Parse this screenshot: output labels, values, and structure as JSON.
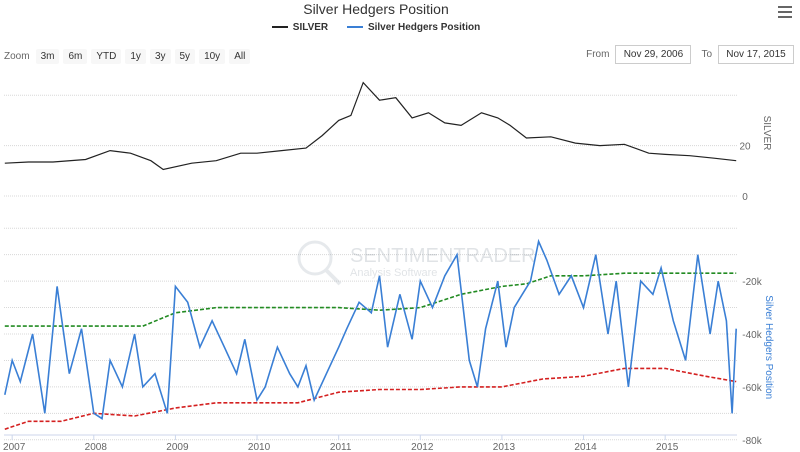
{
  "title": "Silver Hedgers Position",
  "legend": [
    {
      "name": "SILVER",
      "color": "#222222"
    },
    {
      "name": "Silver Hedgers Position",
      "color": "#3a7fd5"
    }
  ],
  "zoom": {
    "label": "Zoom",
    "buttons": [
      "3m",
      "6m",
      "YTD",
      "1y",
      "3y",
      "5y",
      "10y",
      "All"
    ]
  },
  "range": {
    "from_label": "From",
    "from": "Nov 29, 2006",
    "to_label": "To",
    "to": "Nov 17, 2015"
  },
  "watermark": {
    "name": "SENTIMENTRADER",
    "sub": "Analysis Software"
  },
  "colors": {
    "silver": "#222222",
    "hedgers": "#3a7fd5",
    "upper_band": "#228b22",
    "lower_band": "#d42020"
  },
  "chart_data": [
    {
      "type": "line",
      "name": "SILVER",
      "ylabel": "SILVER",
      "ylim": [
        0,
        50
      ],
      "yticks": [
        "20",
        "0"
      ],
      "x_range": [
        2006.9,
        2015.88
      ],
      "x_ticks": [
        "2007",
        "2008",
        "2009",
        "2010",
        "2011",
        "2012",
        "2013",
        "2014",
        "2015"
      ],
      "x": [
        2006.91,
        2007.2,
        2007.5,
        2007.9,
        2008.2,
        2008.45,
        2008.7,
        2008.85,
        2009.2,
        2009.5,
        2009.8,
        2010.0,
        2010.3,
        2010.6,
        2010.8,
        2011.0,
        2011.15,
        2011.3,
        2011.5,
        2011.7,
        2011.9,
        2012.1,
        2012.3,
        2012.5,
        2012.75,
        2012.95,
        2013.1,
        2013.3,
        2013.6,
        2013.9,
        2014.2,
        2014.5,
        2014.8,
        2015.0,
        2015.3,
        2015.6,
        2015.87
      ],
      "y": [
        13,
        13.5,
        13.5,
        14.5,
        18,
        17,
        14,
        10.5,
        13,
        14,
        17,
        17,
        18,
        19,
        24,
        30,
        32,
        45,
        38,
        39,
        31,
        33,
        29,
        28,
        33,
        31,
        28,
        23,
        23.5,
        21,
        20,
        20.5,
        17,
        16.5,
        16,
        15,
        14
      ]
    },
    {
      "type": "line",
      "name": "Silver Hedgers Position",
      "ylabel": "Silver Hedgers Position",
      "ylim": [
        -85000,
        5000
      ],
      "yticks": [
        "-20k",
        "-40k",
        "-60k",
        "-80k"
      ],
      "x_range": [
        2006.9,
        2015.88
      ],
      "series": [
        {
          "name": "Silver Hedgers Position",
          "x": [
            2006.91,
            2007.0,
            2007.1,
            2007.25,
            2007.4,
            2007.55,
            2007.7,
            2007.85,
            2008.0,
            2008.1,
            2008.2,
            2008.35,
            2008.5,
            2008.6,
            2008.75,
            2008.9,
            2009.0,
            2009.15,
            2009.3,
            2009.45,
            2009.6,
            2009.75,
            2009.85,
            2010.0,
            2010.1,
            2010.25,
            2010.4,
            2010.5,
            2010.6,
            2010.7,
            2010.85,
            2011.0,
            2011.1,
            2011.25,
            2011.4,
            2011.5,
            2011.6,
            2011.75,
            2011.9,
            2012.0,
            2012.15,
            2012.3,
            2012.45,
            2012.6,
            2012.7,
            2012.8,
            2012.95,
            2013.05,
            2013.15,
            2013.25,
            2013.35,
            2013.45,
            2013.55,
            2013.7,
            2013.85,
            2014.0,
            2014.15,
            2014.3,
            2014.4,
            2014.55,
            2014.7,
            2014.85,
            2014.95,
            2015.1,
            2015.25,
            2015.4,
            2015.55,
            2015.65,
            2015.75,
            2015.82,
            2015.87
          ],
          "y": [
            -63000,
            -50000,
            -58000,
            -40000,
            -70000,
            -22000,
            -55000,
            -38000,
            -70000,
            -72000,
            -50000,
            -60000,
            -40000,
            -60000,
            -55000,
            -70000,
            -22000,
            -28000,
            -45000,
            -35000,
            -45000,
            -55000,
            -42000,
            -65000,
            -60000,
            -45000,
            -55000,
            -60000,
            -52000,
            -65000,
            -55000,
            -45000,
            -38000,
            -28000,
            -32000,
            -18000,
            -45000,
            -25000,
            -42000,
            -20000,
            -30000,
            -18000,
            -10000,
            -50000,
            -60000,
            -38000,
            -20000,
            -45000,
            -30000,
            -25000,
            -20000,
            -5000,
            -12000,
            -25000,
            -18000,
            -30000,
            -10000,
            -40000,
            -20000,
            -60000,
            -20000,
            -25000,
            -15000,
            -35000,
            -50000,
            -10000,
            -40000,
            -20000,
            -35000,
            -70000,
            -38000
          ]
        },
        {
          "name": "",
          "x": [
            2006.91,
            2007.5,
            2008.2,
            2008.6,
            2009.0,
            2009.5,
            2010.0,
            2010.5,
            2011.0,
            2011.5,
            2012.0,
            2012.5,
            2013.0,
            2013.3,
            2013.6,
            2014.0,
            2014.5,
            2015.0,
            2015.5,
            2015.87
          ],
          "y": [
            -37000,
            -37000,
            -37000,
            -37000,
            -32000,
            -30000,
            -30000,
            -30000,
            -30000,
            -31000,
            -30000,
            -25000,
            -22000,
            -21000,
            -18000,
            -18000,
            -17000,
            -17000,
            -17000,
            -17000
          ]
        },
        {
          "name": "",
          "x": [
            2006.91,
            2007.2,
            2007.6,
            2008.0,
            2008.5,
            2009.0,
            2009.5,
            2010.0,
            2010.5,
            2011.0,
            2011.5,
            2012.0,
            2012.5,
            2013.0,
            2013.5,
            2014.0,
            2014.5,
            2015.0,
            2015.5,
            2015.87
          ],
          "y": [
            -76000,
            -73000,
            -73000,
            -70000,
            -71000,
            -68000,
            -66000,
            -66000,
            -66000,
            -62000,
            -61000,
            -61000,
            -60000,
            -60000,
            -57000,
            -56000,
            -53000,
            -53000,
            -56000,
            -58000
          ]
        }
      ]
    }
  ]
}
